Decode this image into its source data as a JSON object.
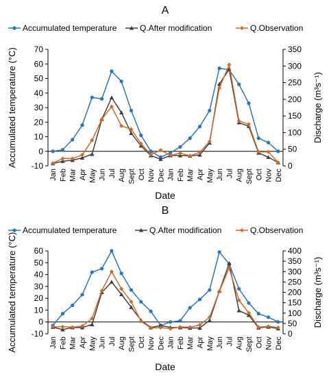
{
  "colors": {
    "accumulated": "#1f77c9",
    "after": "#404040",
    "observation": "#d2691e",
    "axis": "#000000",
    "tick_label": "#000000"
  },
  "chart_data": [
    {
      "type": "line",
      "panel_label": "A",
      "categories": [
        "Jan",
        "Feb",
        "Mar",
        "Apr",
        "May",
        "Jun",
        "Jul",
        "Aug",
        "Sept",
        "Oct",
        "Nov",
        "Dec",
        "Jan",
        "Feb",
        "Mar",
        "Apr",
        "May",
        "Jun",
        "Jul",
        "Aug",
        "Sept",
        "Oct",
        "Nov",
        "Dec"
      ],
      "xlabel": "Date",
      "ylabel_left": "Accumulated temperature (°C)",
      "ylabel_right": "Discharge (m³s⁻¹)",
      "ylim_left": [
        -10,
        70
      ],
      "yticks_left": [
        -10,
        0,
        10,
        20,
        30,
        40,
        50,
        60,
        70
      ],
      "ylim_right": [
        0,
        350
      ],
      "yticks_right": [
        0,
        50,
        100,
        150,
        200,
        250,
        300,
        350
      ],
      "legend": [
        "Accumulated temperature",
        "Q.After modification",
        "Q.Observation"
      ],
      "series": [
        {
          "name": "Accumulated temperature",
          "axis": "left",
          "marker": "circle",
          "values": [
            0,
            1,
            8,
            18,
            37,
            36,
            55,
            48,
            28,
            11,
            0,
            -4,
            -1,
            3,
            9,
            17,
            28,
            57,
            56,
            46,
            33,
            9,
            6,
            0
          ]
        },
        {
          "name": "Q.After modification",
          "axis": "right",
          "marker": "triangle",
          "values": [
            7,
            14,
            17,
            24,
            35,
            140,
            205,
            160,
            98,
            60,
            31,
            20,
            31,
            31,
            30,
            33,
            69,
            246,
            290,
            130,
            119,
            39,
            26,
            10
          ]
        },
        {
          "name": "Q.Observation",
          "axis": "right",
          "marker": "diamond",
          "values": [
            8,
            22,
            22,
            33,
            77,
            140,
            178,
            120,
            110,
            67,
            34,
            47,
            32,
            38,
            30,
            41,
            73,
            234,
            304,
            135,
            125,
            42,
            42,
            10
          ]
        }
      ]
    },
    {
      "type": "line",
      "panel_label": "B",
      "categories": [
        "Jan",
        "Feb",
        "Mar",
        "Apr",
        "May",
        "Jun",
        "Jul",
        "Aug",
        "Sept",
        "Oct",
        "Nov",
        "Dec",
        "Jan",
        "Feb",
        "Mar",
        "Apr",
        "May",
        "Jun",
        "Jul",
        "Aug",
        "Sept",
        "Oct",
        "Nov",
        "Dec"
      ],
      "xlabel": "Date",
      "ylabel_left": "Accumulated temperature (°C)",
      "ylabel_right": "Discharge (m³s⁻¹)",
      "ylim_left": [
        -10,
        60
      ],
      "yticks_left": [
        -10,
        0,
        10,
        20,
        30,
        40,
        50,
        60
      ],
      "ylim_right": [
        0,
        400
      ],
      "yticks_right": [
        0,
        50,
        100,
        150,
        200,
        250,
        300,
        350,
        400
      ],
      "legend": [
        "Accumulated temperature",
        "Q.After modification",
        "Q.Observation"
      ],
      "series": [
        {
          "name": "Accumulated temperature",
          "axis": "left",
          "marker": "circle",
          "values": [
            -3,
            7,
            14,
            23,
            42,
            45,
            60,
            41,
            27,
            17,
            9,
            -3,
            0,
            1,
            12,
            19,
            27,
            59,
            49,
            28,
            16,
            7,
            4,
            0
          ]
        },
        {
          "name": "Q.After modification",
          "axis": "right",
          "marker": "triangle",
          "values": [
            32,
            20,
            30,
            30,
            45,
            200,
            250,
            190,
            128,
            65,
            30,
            40,
            31,
            30,
            28,
            28,
            65,
            206,
            340,
            112,
            90,
            29,
            33,
            25
          ]
        },
        {
          "name": "Q.Observation",
          "axis": "right",
          "marker": "diamond",
          "values": [
            34,
            34,
            32,
            37,
            74,
            208,
            300,
            217,
            155,
            60,
            28,
            30,
            25,
            33,
            32,
            43,
            80,
            205,
            317,
            162,
            101,
            32,
            36,
            30
          ]
        }
      ]
    }
  ]
}
